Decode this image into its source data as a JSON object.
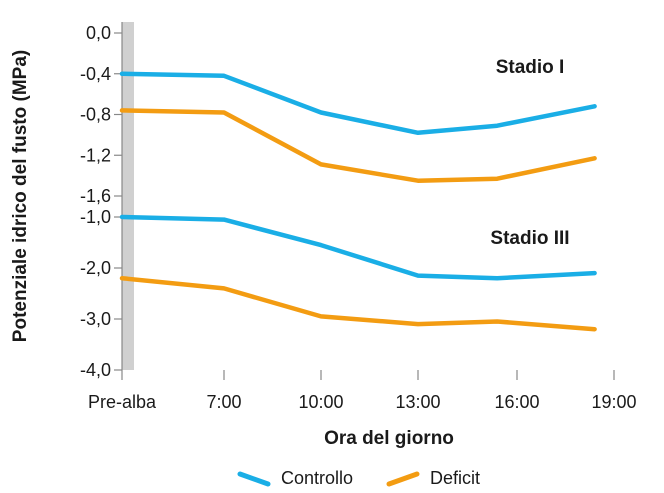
{
  "chart_data": {
    "type": "line",
    "xlabel": "Ora del giorno",
    "ylabel": "Potenziale idrico del fusto (MPa)",
    "categories": [
      "Pre-alba",
      "7:00",
      "10:00",
      "13:00",
      "16:00",
      "19:00"
    ],
    "grid": false,
    "legend_position": "bottom",
    "colors": {
      "Controllo": "#1AAEE6",
      "Deficit": "#F39C12",
      "axis": "#888888",
      "band": "#D0D0D0"
    },
    "panels": [
      {
        "label": "Stadio I",
        "yticks": [
          "0,0",
          "-0,4",
          "-0,8",
          "-1,2",
          "-1,6"
        ],
        "ylim": [
          -1.6,
          0
        ],
        "series": [
          {
            "name": "Controllo",
            "x": [
              0,
              1,
              2,
              3,
              3.8,
              4.8
            ],
            "values": [
              -0.4,
              -0.42,
              -0.78,
              -0.98,
              -0.91,
              -0.72
            ]
          },
          {
            "name": "Deficit",
            "x": [
              0,
              1,
              2,
              3,
              3.8,
              4.8
            ],
            "values": [
              -0.76,
              -0.78,
              -1.29,
              -1.45,
              -1.43,
              -1.23
            ]
          }
        ]
      },
      {
        "label": "Stadio III",
        "yticks": [
          "-1,0",
          "-2,0",
          "-3,0",
          "-4,0"
        ],
        "ylim": [
          -4.0,
          -1.0
        ],
        "series": [
          {
            "name": "Controllo",
            "x": [
              0,
              1,
              2,
              3,
              3.8,
              4.8
            ],
            "values": [
              -1.0,
              -1.05,
              -1.55,
              -2.15,
              -2.2,
              -2.1
            ]
          },
          {
            "name": "Deficit",
            "x": [
              0,
              1,
              2,
              3,
              3.8,
              4.8
            ],
            "values": [
              -2.2,
              -2.4,
              -2.95,
              -3.1,
              -3.05,
              -3.2
            ]
          }
        ]
      }
    ]
  }
}
